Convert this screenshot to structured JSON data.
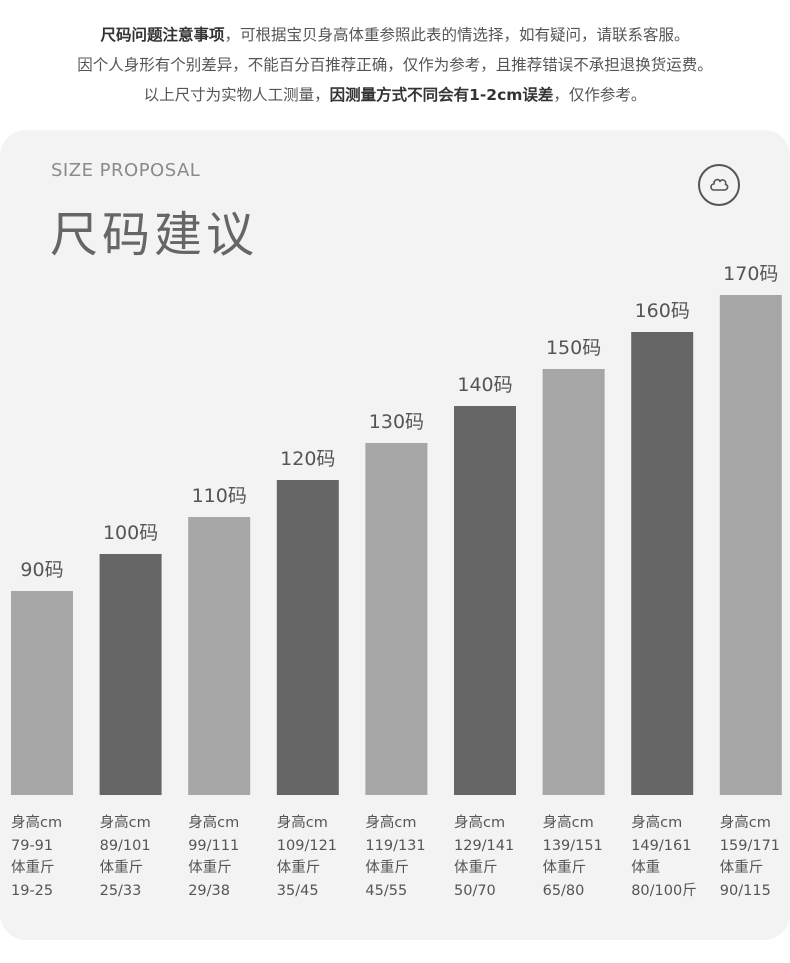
{
  "notice": {
    "line1_bold": "尺码问题注意事项",
    "line1_rest": "，可根据宝贝身高体重参照此表的情选择，如有疑问，请联系客服。",
    "line2": "因个人身形有个别差异，不能百分百推荐正确，仅作为参考，且推荐错误不承担退换货运费。",
    "line3_pre": "以上尺寸为实物人工测量，",
    "line3_bold": "因测量方式不同会有1-2cm误差",
    "line3_post": "，仅作参考。"
  },
  "header": {
    "label_en": "SIZE PROPOSAL",
    "title": "尺码建议",
    "logo_icon": "cloud-logo-icon"
  },
  "colors": {
    "light_bar": "#a6a6a6",
    "dark_bar": "#666666",
    "card_bg": "#f3f3f3"
  },
  "chart_data": {
    "type": "bar",
    "categories": [
      "90码",
      "100码",
      "110码",
      "120码",
      "130码",
      "140码",
      "150码",
      "160码",
      "170码"
    ],
    "values": [
      90,
      100,
      110,
      120,
      130,
      140,
      150,
      160,
      170
    ],
    "ylabel": "",
    "xlabel": ""
  },
  "sizes": [
    {
      "height_label": "身高cm",
      "height": "79-91",
      "weight_label": "体重斤",
      "weight": "19-25"
    },
    {
      "height_label": "身高cm",
      "height": "89/101",
      "weight_label": "体重斤",
      "weight": "25/33"
    },
    {
      "height_label": "身高cm",
      "height": "99/111",
      "weight_label": "体重斤",
      "weight": "29/38"
    },
    {
      "height_label": "身高cm",
      "height": "109/121",
      "weight_label": "体重斤",
      "weight": "35/45"
    },
    {
      "height_label": "身高cm",
      "height": "119/131",
      "weight_label": "体重斤",
      "weight": "45/55"
    },
    {
      "height_label": "身高cm",
      "height": "129/141",
      "weight_label": "体重斤",
      "weight": "50/70"
    },
    {
      "height_label": "身高cm",
      "height": "139/151",
      "weight_label": "体重斤",
      "weight": "65/80"
    },
    {
      "height_label": "身高cm",
      "height": "149/161",
      "weight_label": "体重",
      "weight": "80/100斤"
    },
    {
      "height_label": "身高cm",
      "height": "159/171",
      "weight_label": "体重斤",
      "weight": "90/115"
    }
  ]
}
